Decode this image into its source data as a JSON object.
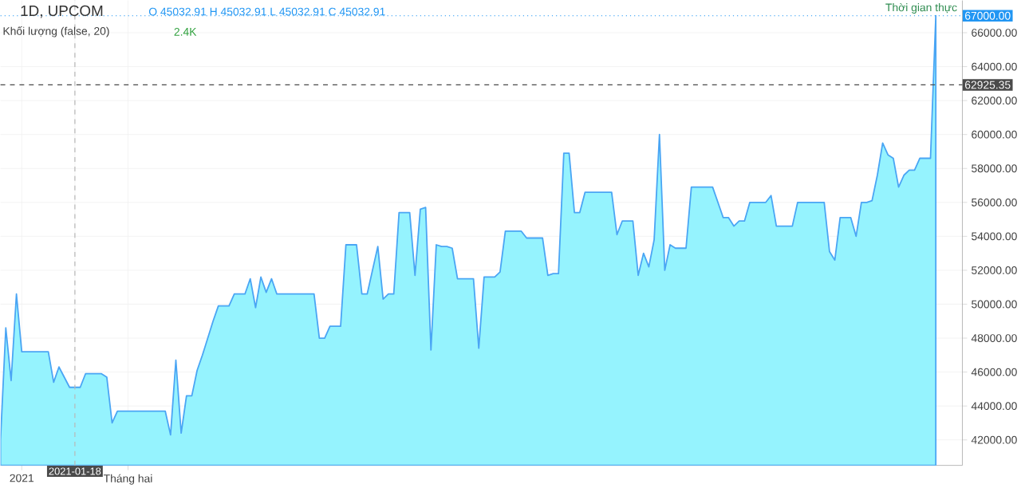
{
  "chart_data": {
    "type": "area",
    "title": "1D, UPCOM",
    "annotations": [
      "O 45032.91 H 45032.91 L 45032.91 C 45032.91",
      "Khối lượng (false, 20)",
      "2.4K",
      "Thời gian thực"
    ],
    "categories": [
      null,
      null,
      null,
      null,
      "2021",
      null,
      null,
      null,
      null,
      null,
      null,
      null,
      null,
      null,
      "2021-01-18",
      null,
      null,
      null,
      null,
      null,
      null,
      null,
      null,
      null,
      "Tháng hai",
      null,
      null,
      null,
      null,
      null,
      null,
      null,
      null,
      null,
      null,
      null,
      null,
      null,
      null,
      null,
      null,
      null,
      null,
      null,
      null,
      null,
      null,
      null,
      null,
      null,
      null,
      null,
      null,
      null,
      null,
      null,
      null,
      null,
      null,
      null,
      null,
      null,
      null,
      null,
      null,
      null,
      null,
      null,
      null,
      null,
      null,
      null,
      null,
      null,
      null,
      null,
      null,
      null,
      null,
      null,
      null,
      null,
      null,
      null,
      null,
      null,
      null,
      null,
      null,
      null,
      null,
      null,
      null,
      null,
      null,
      null,
      null,
      null,
      null,
      null,
      null,
      null,
      null,
      null,
      null,
      null,
      null,
      null,
      null,
      null,
      null,
      null,
      null,
      null,
      null,
      null,
      null,
      null,
      null,
      null,
      null,
      null,
      null,
      null,
      null,
      null,
      null,
      null,
      null,
      null,
      null,
      null,
      null,
      null,
      null,
      null,
      null,
      null,
      null,
      null,
      null,
      null,
      null,
      null,
      null,
      null,
      null,
      null,
      null,
      null,
      null,
      null,
      null,
      null,
      null,
      null,
      null,
      null,
      null,
      null,
      null,
      null,
      null,
      null,
      null,
      null,
      null,
      null,
      null,
      null,
      null,
      null,
      null,
      null,
      null,
      null,
      null,
      null,
      null,
      null,
      null,
      null
    ],
    "ylim": [
      40500,
      67900
    ],
    "yticks": [
      {
        "value": 42000,
        "label": "42000.00"
      },
      {
        "value": 44000,
        "label": "44000.00"
      },
      {
        "value": 46000,
        "label": "46000.00"
      },
      {
        "value": 48000,
        "label": "48000.00"
      },
      {
        "value": 50000,
        "label": "50000.00"
      },
      {
        "value": 52000,
        "label": "52000.00"
      },
      {
        "value": 54000,
        "label": "54000.00"
      },
      {
        "value": 56000,
        "label": "56000.00"
      },
      {
        "value": 58000,
        "label": "58000.00"
      },
      {
        "value": 60000,
        "label": "60000.00"
      },
      {
        "value": 62000,
        "label": "62000.00"
      },
      {
        "value": 64000,
        "label": "64000.00"
      },
      {
        "value": 66000,
        "label": "66000.00"
      }
    ],
    "grid": true,
    "ref_lines": [
      {
        "axis": "y",
        "value": 67000,
        "label": "67000.00",
        "color": "#2196f3",
        "line_style": "dotted"
      },
      {
        "axis": "y",
        "value": 62925.35,
        "label": "62925.35",
        "color": "#4a4a4a",
        "line_style": "dashed"
      },
      {
        "axis": "x",
        "value": "2021-01-18",
        "color": "#b7b7b7",
        "line_style": "dashed"
      }
    ],
    "series": [
      {
        "color": "#95f3fe",
        "values": [
          42000,
          48600,
          45500,
          50600,
          47200,
          47200,
          47200,
          47200,
          47200,
          47200,
          45400,
          46300,
          45700,
          45100,
          45100,
          45100,
          45900,
          45900,
          45900,
          45900,
          45700,
          43000,
          43700,
          43700,
          43700,
          43700,
          43700,
          43700,
          43700,
          43700,
          43700,
          43700,
          42300,
          46700,
          42400,
          44600,
          44600,
          46100,
          47000,
          48000,
          49000,
          49900,
          49900,
          49900,
          50600,
          50600,
          50600,
          51500,
          49800,
          51600,
          50700,
          51500,
          50600,
          50600,
          50600,
          50600,
          50600,
          50600,
          50600,
          50600,
          48000,
          48000,
          48700,
          48700,
          48700,
          53500,
          53500,
          53500,
          50600,
          50600,
          52000,
          53400,
          50300,
          50600,
          50600,
          55400,
          55400,
          55400,
          51700,
          55600,
          55700,
          47300,
          53500,
          53400,
          53400,
          53300,
          51500,
          51500,
          51500,
          51500,
          47400,
          51600,
          51600,
          51600,
          51900,
          54300,
          54300,
          54300,
          54300,
          53900,
          53900,
          53900,
          53900,
          51700,
          51800,
          51800,
          58900,
          58900,
          55400,
          55400,
          56600,
          56600,
          56600,
          56600,
          56600,
          56600,
          54100,
          54900,
          54900,
          54900,
          51700,
          53000,
          52200,
          53800,
          60000,
          52000,
          53500,
          53300,
          53300,
          53300,
          56900,
          56900,
          56900,
          56900,
          56900,
          56000,
          55100,
          55100,
          54600,
          54900,
          54900,
          56000,
          56000,
          56000,
          56000,
          56400,
          54600,
          54600,
          54600,
          54600,
          56000,
          56000,
          56000,
          56000,
          56000,
          56000,
          53100,
          52600,
          55100,
          55100,
          55100,
          54000,
          56000,
          56000,
          56100,
          57600,
          59500,
          58800,
          58600,
          56900,
          57600,
          57900,
          57900,
          58600,
          58600,
          58600,
          67000,
          null,
          null,
          null,
          null,
          null
        ]
      }
    ]
  }
}
